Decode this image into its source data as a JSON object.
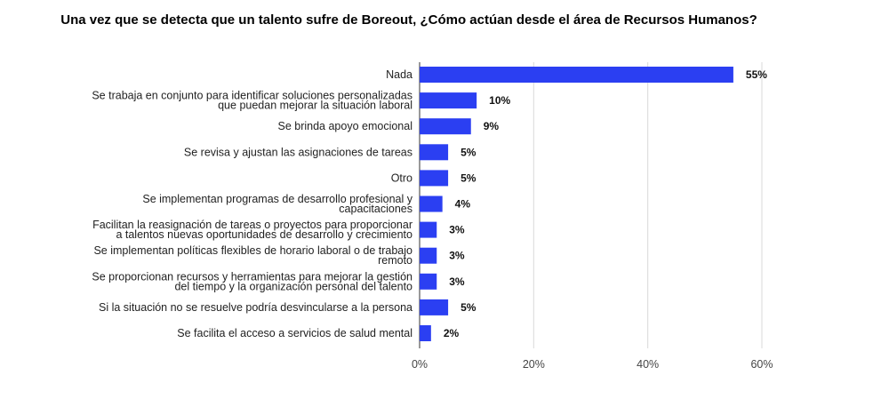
{
  "chart_data": {
    "type": "bar",
    "orientation": "horizontal",
    "title": "Una vez que se detecta que un talento sufre de Boreout, ¿Cómo actúan desde el área de Recursos Humanos?",
    "categories": [
      [
        "Nada"
      ],
      [
        "Se trabaja en conjunto para identificar soluciones personalizadas",
        "que puedan mejorar la situación laboral"
      ],
      [
        "Se brinda apoyo emocional"
      ],
      [
        "Se revisa y ajustan las asignaciones de tareas"
      ],
      [
        "Otro"
      ],
      [
        "Se implementan programas de desarrollo profesional y",
        "capacitaciones"
      ],
      [
        "Facilitan la reasignación de tareas o proyectos para proporcionar",
        "a talentos nuevas oportunidades de desarrollo y crecimiento"
      ],
      [
        "Se implementan políticas flexibles de horario laboral o de trabajo",
        "remoto"
      ],
      [
        "Se proporcionan recursos y herramientas para mejorar la gestión",
        "del tiempo y la organización personal del talento"
      ],
      [
        "Si la situación no se resuelve podría desvincularse a la persona"
      ],
      [
        "Se facilita el acceso a servicios de salud mental"
      ]
    ],
    "values": [
      55,
      10,
      9,
      5,
      5,
      4,
      3,
      3,
      3,
      5,
      2
    ],
    "value_labels": [
      "55%",
      "10%",
      "9%",
      "5%",
      "5%",
      "4%",
      "3%",
      "3%",
      "3%",
      "5%",
      "2%"
    ],
    "xlim": [
      0,
      60
    ],
    "xticks": [
      0,
      20,
      40,
      60
    ],
    "xtick_labels": [
      "0%",
      "20%",
      "40%",
      "60%"
    ],
    "grid": true,
    "bar_color": "#2b3ff2"
  }
}
